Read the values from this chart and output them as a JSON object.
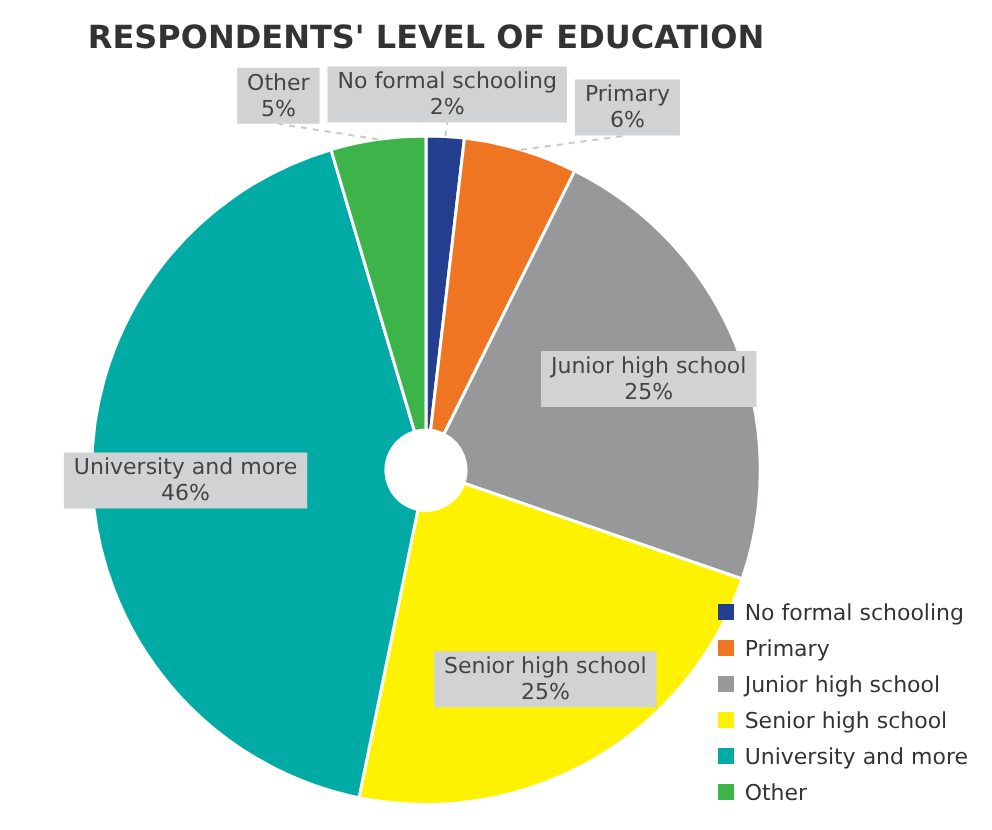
{
  "chart_data": {
    "type": "pie",
    "title": "RESPONDENTS' LEVEL OF EDUCATION",
    "categories": [
      "No formal schooling",
      "Primary",
      "Junior high school",
      "Senior high school",
      "University and more",
      "Other"
    ],
    "values": [
      2,
      6,
      25,
      25,
      46,
      5
    ],
    "value_labels": [
      "2%",
      "6%",
      "25%",
      "25%",
      "46%",
      "5%"
    ],
    "colors": [
      "#243f8f",
      "#f07522",
      "#97989a",
      "#fff200",
      "#00aba5",
      "#3db44a"
    ],
    "legend": "bottom right"
  }
}
